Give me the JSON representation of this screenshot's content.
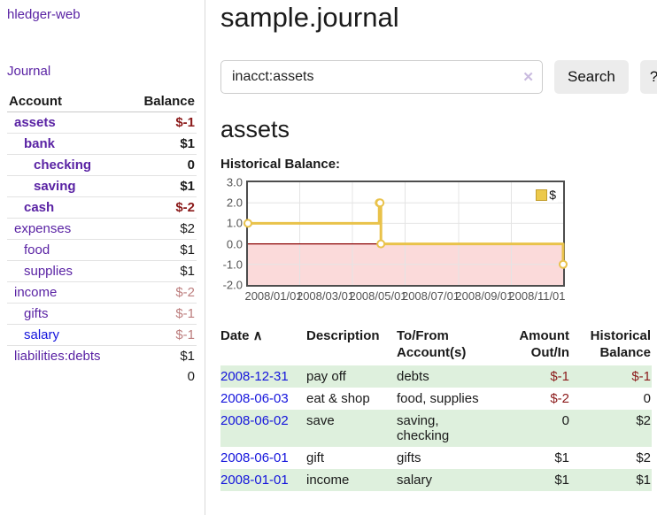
{
  "palette": {
    "link-purple": "#5a23a4",
    "link-blue": "#1414dc",
    "neg-strong": "#8b1a1a",
    "neg-muted": "#bd7e7e",
    "row-green": "#def0dd"
  },
  "sidebar": {
    "app_title": "hledger-web",
    "journal_link": "Journal"
  },
  "account_tree": {
    "columns": [
      "Account",
      "Balance"
    ],
    "rows": [
      {
        "account": "assets",
        "depth": 1,
        "bold": true,
        "link": "purple",
        "balance": "$-1",
        "balance_style": "neg-strong"
      },
      {
        "account": "bank",
        "depth": 2,
        "bold": true,
        "link": "purple",
        "balance": "$1",
        "balance_style": "pos"
      },
      {
        "account": "checking",
        "depth": 3,
        "bold": true,
        "link": "purple",
        "balance": "0",
        "balance_style": "pos"
      },
      {
        "account": "saving",
        "depth": 3,
        "bold": true,
        "link": "purple",
        "balance": "$1",
        "balance_style": "pos"
      },
      {
        "account": "cash",
        "depth": 2,
        "bold": true,
        "link": "purple",
        "balance": "$-2",
        "balance_style": "neg-strong"
      },
      {
        "account": "expenses",
        "depth": 1,
        "bold": false,
        "link": "purple",
        "balance": "$2",
        "balance_style": "pos"
      },
      {
        "account": "food",
        "depth": 2,
        "bold": false,
        "link": "purple",
        "balance": "$1",
        "balance_style": "pos"
      },
      {
        "account": "supplies",
        "depth": 2,
        "bold": false,
        "link": "purple",
        "balance": "$1",
        "balance_style": "pos"
      },
      {
        "account": "income",
        "depth": 1,
        "bold": false,
        "link": "purple",
        "balance": "$-2",
        "balance_style": "neg-muted"
      },
      {
        "account": "gifts",
        "depth": 2,
        "bold": false,
        "link": "purple",
        "balance": "$-1",
        "balance_style": "neg-muted"
      },
      {
        "account": "salary",
        "depth": 2,
        "bold": false,
        "link": "blue",
        "balance": "$-1",
        "balance_style": "neg-muted"
      },
      {
        "account": "liabilities:debts",
        "depth": 1,
        "bold": false,
        "link": "purple",
        "balance": "$1",
        "balance_style": "pos"
      }
    ],
    "total": "0"
  },
  "header": {
    "title": "sample.journal"
  },
  "search": {
    "value": "inacct:assets",
    "clear_label": "✕",
    "button_label": "Search",
    "help_label": "?"
  },
  "main": {
    "account_heading": "assets",
    "chart_heading": "Historical Balance:"
  },
  "chart_data": {
    "type": "line",
    "step": true,
    "title": "Historical Balance:",
    "series": [
      {
        "name": "$",
        "points": [
          {
            "date": "2008-01-01",
            "value": 1
          },
          {
            "date": "2008-06-01",
            "value": 2
          },
          {
            "date": "2008-06-02",
            "value": 2
          },
          {
            "date": "2008-06-03",
            "value": 0
          },
          {
            "date": "2008-12-31",
            "value": -1
          }
        ]
      }
    ],
    "x_range": [
      "2008-01-01",
      "2008-12-31"
    ],
    "x_ticks": [
      {
        "date": "2008-01-01",
        "label": "2008/01/01"
      },
      {
        "date": "2008-03-01",
        "label": "2008/03/01"
      },
      {
        "date": "2008-05-01",
        "label": "2008/05/01"
      },
      {
        "date": "2008-07-01",
        "label": "2008/07/01"
      },
      {
        "date": "2008-09-01",
        "label": "2008/09/01"
      },
      {
        "date": "2008-11-01",
        "label": "2008/11/01"
      }
    ],
    "y_ticks": [
      3.0,
      2.0,
      1.0,
      0.0,
      -1.0,
      -2.0
    ],
    "ylim": [
      -2,
      3
    ],
    "legend": {
      "label": "$",
      "position": "top-right"
    },
    "grid": true,
    "colors": {
      "line": "#e9c24a",
      "marker_fill": "#ffffff",
      "negative_fill": "#fbdada",
      "zero_line": "#8b0000",
      "grid": "#e4e4e4",
      "border": "#4d4d4d"
    }
  },
  "journal_table": {
    "columns": [
      {
        "label": "Date",
        "align": "left",
        "sortable": true,
        "sort_indicator": "∧"
      },
      {
        "label": "Description",
        "align": "left",
        "sortable": false
      },
      {
        "label": "To/From Account(s)",
        "align": "left",
        "sortable": false
      },
      {
        "label": "Amount Out/In",
        "align": "right",
        "sortable": false
      },
      {
        "label": "Historical Balance",
        "align": "right",
        "sortable": false
      }
    ],
    "rows": [
      {
        "date": "2008-12-31",
        "description": "pay off",
        "accounts": "debts",
        "amount": "$-1",
        "amount_neg": true,
        "balance": "$-1",
        "balance_neg": true,
        "shaded": true
      },
      {
        "date": "2008-06-03",
        "description": "eat & shop",
        "accounts": "food, supplies",
        "amount": "$-2",
        "amount_neg": true,
        "balance": "0",
        "balance_neg": false,
        "shaded": false
      },
      {
        "date": "2008-06-02",
        "description": "save",
        "accounts": "saving,\nchecking",
        "amount": "0",
        "amount_neg": false,
        "balance": "$2",
        "balance_neg": false,
        "shaded": true
      },
      {
        "date": "2008-06-01",
        "description": "gift",
        "accounts": "gifts",
        "amount": "$1",
        "amount_neg": false,
        "balance": "$2",
        "balance_neg": false,
        "shaded": false
      },
      {
        "date": "2008-01-01",
        "description": "income",
        "accounts": "salary",
        "amount": "$1",
        "amount_neg": false,
        "balance": "$1",
        "balance_neg": false,
        "shaded": true
      }
    ]
  }
}
